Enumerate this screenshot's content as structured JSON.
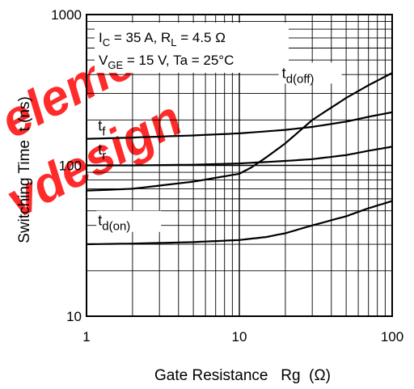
{
  "chart_data": {
    "type": "line",
    "title": "",
    "xlabel": "Gate Resistance   Rg  (Ω)",
    "ylabel": "Switching Time  t (ns)",
    "x_scale": "log",
    "y_scale": "log",
    "xlim": [
      1,
      100
    ],
    "ylim": [
      10,
      1000
    ],
    "x_ticks": [
      "1",
      "10",
      "100"
    ],
    "y_ticks": [
      "10",
      "100",
      "1000"
    ],
    "grid": true,
    "conditions": {
      "line1_parts": [
        "I",
        "C",
        " = 35 A, R",
        "L",
        " = 4.5 Ω"
      ],
      "line2_parts": [
        "V",
        "GE",
        " = 15 V, Ta = 25°C"
      ]
    },
    "series": [
      {
        "name": "td(off)",
        "label_main": "t",
        "label_sub": "d(off)",
        "x": [
          1,
          2,
          5,
          10,
          12,
          15,
          20,
          30,
          50,
          70,
          100
        ],
        "y": [
          68,
          70,
          78,
          88,
          97,
          113,
          140,
          200,
          280,
          340,
          410
        ]
      },
      {
        "name": "tf",
        "label_main": "t",
        "label_sub": "f",
        "x": [
          1,
          2,
          5,
          10,
          20,
          30,
          50,
          70,
          100
        ],
        "y": [
          150,
          153,
          158,
          163,
          172,
          180,
          195,
          210,
          225
        ]
      },
      {
        "name": "tr",
        "label_main": "t",
        "label_sub": "r",
        "x": [
          1,
          2,
          5,
          10,
          20,
          30,
          50,
          70,
          100
        ],
        "y": [
          100,
          100,
          101,
          103,
          107,
          110,
          117,
          125,
          133
        ]
      },
      {
        "name": "td(on)",
        "label_main": "t",
        "label_sub": "d(on)",
        "x": [
          1,
          2,
          5,
          10,
          15,
          20,
          30,
          50,
          70,
          100
        ],
        "y": [
          30,
          30.3,
          31,
          32,
          33.5,
          35.5,
          40,
          46,
          52,
          58
        ]
      }
    ]
  },
  "watermark": {
    "line1": "element",
    "line2": "vdesign",
    "color": "#ff1a1a"
  }
}
